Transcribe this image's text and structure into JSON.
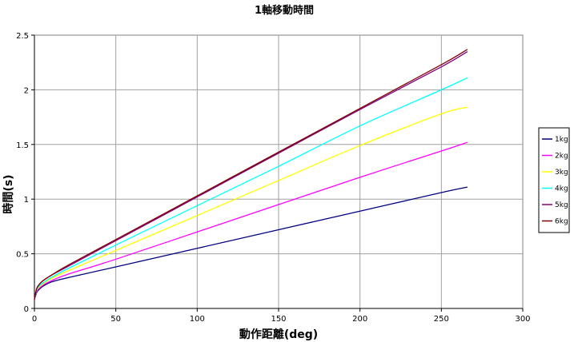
{
  "chart_data": {
    "type": "line",
    "title": "1軸移動時間",
    "xlabel": "動作距離(deg)",
    "ylabel": "時間(s)",
    "xlim": [
      0,
      300
    ],
    "ylim": [
      0,
      2.5
    ],
    "x_ticks": [
      "0",
      "50",
      "100",
      "150",
      "200",
      "250",
      "300"
    ],
    "y_ticks": [
      "0",
      "0.5",
      "1",
      "1.5",
      "2",
      "2.5"
    ],
    "grid": true,
    "legend_position": "right",
    "x": [
      0,
      1,
      2,
      5,
      10,
      20,
      50,
      100,
      150,
      200,
      250,
      266
    ],
    "series": [
      {
        "name": "1kg",
        "color": "#000080",
        "values": [
          0.08,
          0.13,
          0.16,
          0.2,
          0.24,
          0.28,
          0.38,
          0.55,
          0.72,
          0.89,
          1.06,
          1.11
        ]
      },
      {
        "name": "2kg",
        "color": "#ff00ff",
        "values": [
          0.08,
          0.14,
          0.17,
          0.21,
          0.25,
          0.31,
          0.45,
          0.7,
          0.95,
          1.2,
          1.44,
          1.52
        ]
      },
      {
        "name": "3kg",
        "color": "#ffff00",
        "values": [
          0.08,
          0.15,
          0.18,
          0.22,
          0.27,
          0.34,
          0.53,
          0.85,
          1.17,
          1.49,
          1.78,
          1.84
        ]
      },
      {
        "name": "4kg",
        "color": "#00ffff",
        "values": [
          0.08,
          0.15,
          0.19,
          0.23,
          0.28,
          0.36,
          0.58,
          0.94,
          1.3,
          1.67,
          2.0,
          2.11
        ]
      },
      {
        "name": "5kg",
        "color": "#800080",
        "values": [
          0.08,
          0.16,
          0.2,
          0.25,
          0.3,
          0.38,
          0.62,
          1.02,
          1.42,
          1.82,
          2.21,
          2.35
        ]
      },
      {
        "name": "6kg",
        "color": "#800000",
        "values": [
          0.08,
          0.16,
          0.2,
          0.25,
          0.3,
          0.39,
          0.63,
          1.03,
          1.43,
          1.83,
          2.23,
          2.37
        ]
      }
    ]
  }
}
